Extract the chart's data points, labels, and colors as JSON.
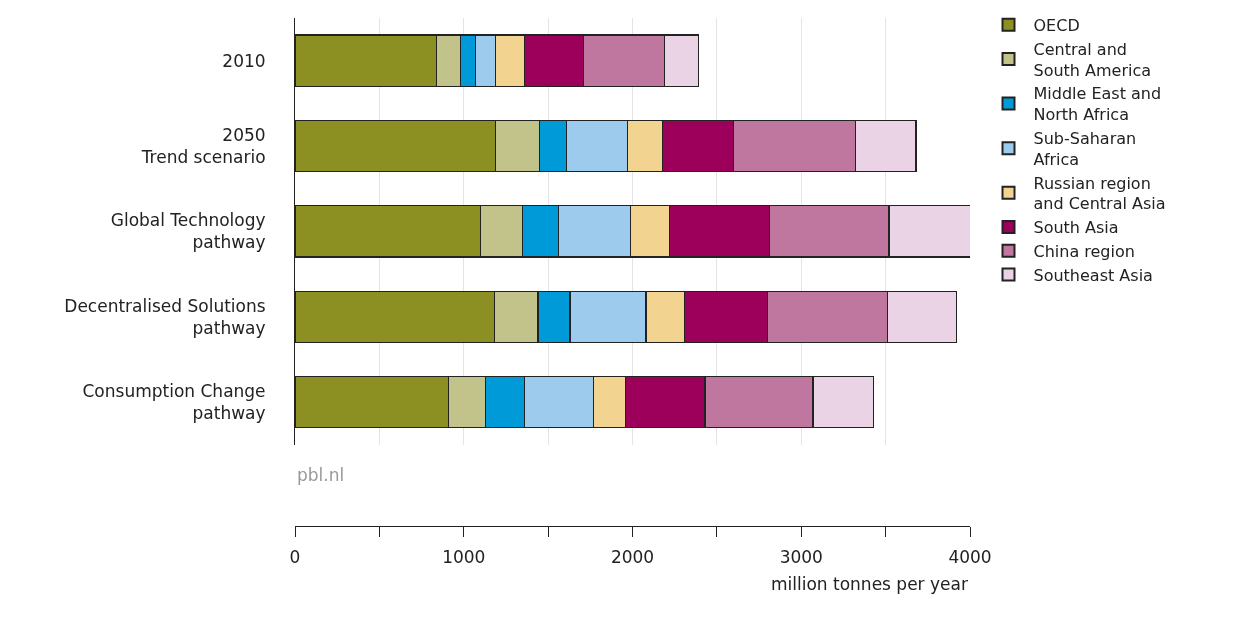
{
  "chart_data": {
    "type": "bar",
    "orientation": "horizontal",
    "stacked": true,
    "categories": [
      "2010",
      "2050\nTrend scenario",
      "Global Technology\npathway",
      "Decentralised Solutions\npathway",
      "Consumption Change\npathway"
    ],
    "series": [
      {
        "name": "OECD",
        "color": "#8c8f22",
        "values": [
          840,
          1190,
          1100,
          1180,
          910
        ]
      },
      {
        "name": "Central and\nSouth America",
        "color": "#c2c38a",
        "values": [
          140,
          260,
          250,
          260,
          220
        ]
      },
      {
        "name": "Middle East and\nNorth Africa",
        "color": "#009ad8",
        "values": [
          90,
          160,
          210,
          190,
          230
        ]
      },
      {
        "name": "Sub-Saharan\nAfrica",
        "color": "#9dcbee",
        "values": [
          120,
          360,
          430,
          450,
          410
        ]
      },
      {
        "name": "Russian region\nand Central Asia",
        "color": "#f3d390",
        "values": [
          170,
          210,
          230,
          230,
          190
        ]
      },
      {
        "name": "South Asia",
        "color": "#9c005a",
        "values": [
          350,
          420,
          590,
          490,
          470
        ]
      },
      {
        "name": "China region",
        "color": "#bf779f",
        "values": [
          480,
          720,
          710,
          710,
          640
        ]
      },
      {
        "name": "Southeast Asia",
        "color": "#e9d3e4",
        "values": [
          200,
          360,
          490,
          410,
          360
        ]
      }
    ],
    "xlabel": "million tonnes per year",
    "xlim": [
      0,
      4000
    ],
    "xticks": [
      0,
      {
        "value": 500,
        "label": null
      },
      1000,
      {
        "value": 1500,
        "label": null
      },
      2000,
      {
        "value": 2500,
        "label": null
      },
      3000,
      {
        "value": 3500,
        "label": null
      },
      4000
    ],
    "grid": "x",
    "legend": "right",
    "annotations": [
      "pbl.nl"
    ]
  }
}
